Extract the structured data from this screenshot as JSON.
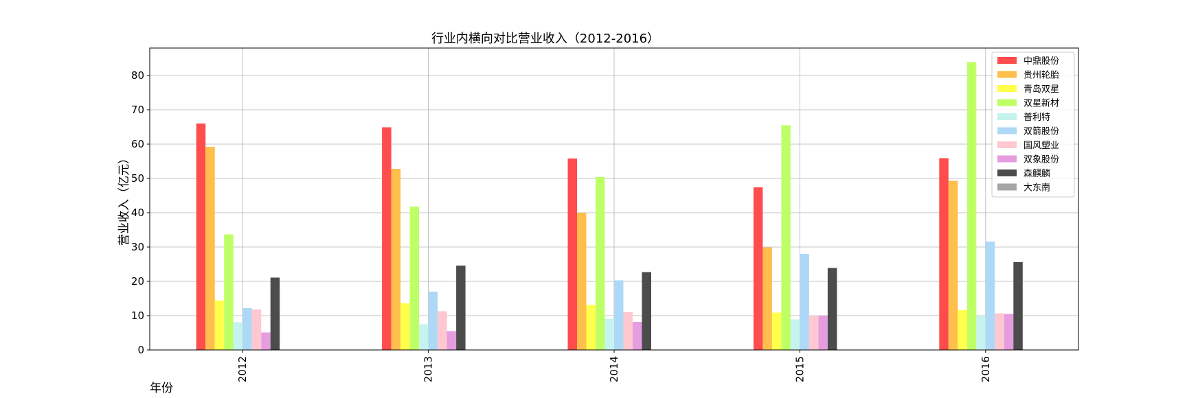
{
  "chart_data": {
    "type": "bar",
    "title": "行业内横向对比营业收入（2012-2016）",
    "xlabel": "年份",
    "ylabel": "营业收入（亿元）",
    "categories": [
      "2012",
      "2013",
      "2014",
      "2015",
      "2016"
    ],
    "ylim": [
      0,
      88
    ],
    "yticks": [
      0,
      10,
      20,
      30,
      40,
      50,
      60,
      70,
      80
    ],
    "grid": true,
    "legend_position": "top-right",
    "series": [
      {
        "name": "中鼎股份",
        "color": "#ff4c4c",
        "values": [
          66.0,
          64.9,
          55.8,
          47.4,
          55.9
        ]
      },
      {
        "name": "贵州轮胎",
        "color": "#ffbf4c",
        "values": [
          59.2,
          52.8,
          40.0,
          29.9,
          49.3
        ]
      },
      {
        "name": "青岛双星",
        "color": "#ffff4c",
        "values": [
          14.4,
          13.6,
          13.1,
          10.9,
          11.6
        ]
      },
      {
        "name": "双星新材",
        "color": "#bfff66",
        "values": [
          33.7,
          41.8,
          50.4,
          65.5,
          83.9
        ]
      },
      {
        "name": "普利特",
        "color": "#c6f3ef",
        "values": [
          8.1,
          7.5,
          9.1,
          8.9,
          9.8
        ]
      },
      {
        "name": "双箭股份",
        "color": "#add8f6",
        "values": [
          12.2,
          17.0,
          20.3,
          28.0,
          31.6
        ]
      },
      {
        "name": "国风塑业",
        "color": "#ffc8d0",
        "values": [
          11.8,
          11.3,
          11.0,
          9.8,
          10.7
        ]
      },
      {
        "name": "双象股份",
        "color": "#e59de0",
        "values": [
          5.1,
          5.5,
          8.2,
          10.0,
          10.5
        ]
      },
      {
        "name": "森麒麟",
        "color": "#4c4c4c",
        "values": [
          21.1,
          24.6,
          22.7,
          23.9,
          25.6
        ]
      },
      {
        "name": "大东南",
        "color": "#a6a6a6",
        "values": [
          null,
          null,
          null,
          null,
          null
        ]
      }
    ]
  }
}
